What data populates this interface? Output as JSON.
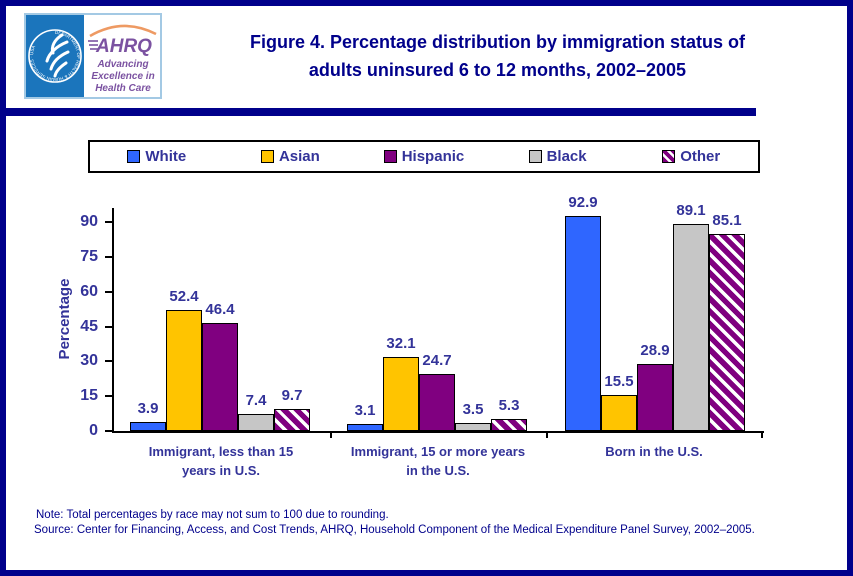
{
  "header": {
    "title_line1": "Figure 4. Percentage distribution by immigration status of",
    "title_line2": "adults uninsured 6 to 12 months, 2002–2005",
    "accent_color": "#00008B",
    "logo": {
      "seal_ring_text": "DEPARTMENT OF HEALTH & HUMAN SERVICES · USA",
      "acronym": "AHRQ",
      "tagline_lines": [
        "Advancing",
        "Excellence in",
        "Health Care"
      ],
      "seal_color": "#1B75BC",
      "brand_color": "#7B52A1",
      "arc_color": "#EE9A63"
    }
  },
  "chart_data": {
    "type": "bar",
    "title": "Percentage distribution by immigration status of adults uninsured 6 to 12 months, 2002–2005",
    "ylabel": "Percentage",
    "xlabel": "",
    "ylim": [
      0,
      96
    ],
    "yticks": [
      0,
      15,
      30,
      45,
      60,
      75,
      90
    ],
    "grid": false,
    "legend_position": "top",
    "categories": [
      "Immigrant, less than 15 years in U.S.",
      "Immigrant, 15 or more years in the U.S.",
      "Born in the U.S."
    ],
    "category_label_lines": [
      [
        "Immigrant, less than 15",
        "years in U.S."
      ],
      [
        "Immigrant, 15 or more years",
        "in the U.S."
      ],
      [
        "Born in the U.S."
      ]
    ],
    "series": [
      {
        "name": "White",
        "color": "#2F66FF",
        "pattern": "solid",
        "values": [
          3.9,
          3.1,
          92.9
        ]
      },
      {
        "name": "Asian",
        "color": "#FFC400",
        "pattern": "solid",
        "values": [
          52.4,
          32.1,
          15.5
        ]
      },
      {
        "name": "Hispanic",
        "color": "#800080",
        "pattern": "solid",
        "values": [
          46.4,
          24.7,
          28.9
        ]
      },
      {
        "name": "Black",
        "color": "#C6C6C6",
        "pattern": "solid",
        "values": [
          7.4,
          3.5,
          89.1
        ]
      },
      {
        "name": "Other",
        "color": "#800080",
        "pattern": "diagonal-stripes",
        "values": [
          9.7,
          5.3,
          85.1
        ]
      }
    ],
    "label_color": "#333399"
  },
  "footer": {
    "note": "Note:  Total percentages by race may not sum to 100 due to rounding.",
    "source": "Source: Center for Financing, Access, and Cost Trends, AHRQ, Household Component of the Medical Expenditure Panel Survey, 2002–2005."
  }
}
